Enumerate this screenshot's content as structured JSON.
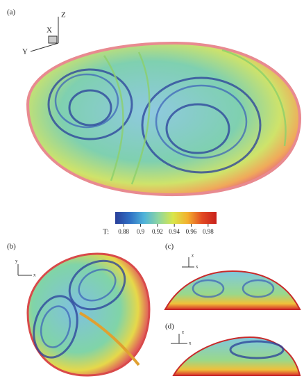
{
  "panels": {
    "a": "(a)",
    "b": "(b)",
    "c": "(c)",
    "d": "(d)"
  },
  "axes_a": {
    "x": "X",
    "y": "Y",
    "z": "Z"
  },
  "axes_b": {
    "v": "y",
    "h": "x"
  },
  "axes_c": {
    "v": "z",
    "h": "x"
  },
  "axes_d": {
    "v": "z",
    "h": "x"
  },
  "colorbar": {
    "label": "T:",
    "lim": [
      0.87,
      0.99
    ],
    "ticks": [
      0.88,
      0.9,
      0.92,
      0.94,
      0.96,
      0.98
    ],
    "colors": [
      "#2a3f9a",
      "#2f6fc4",
      "#4fb3d9",
      "#8fd6a0",
      "#d9e64a",
      "#f3b02f",
      "#e24a23",
      "#c8201c"
    ]
  }
}
